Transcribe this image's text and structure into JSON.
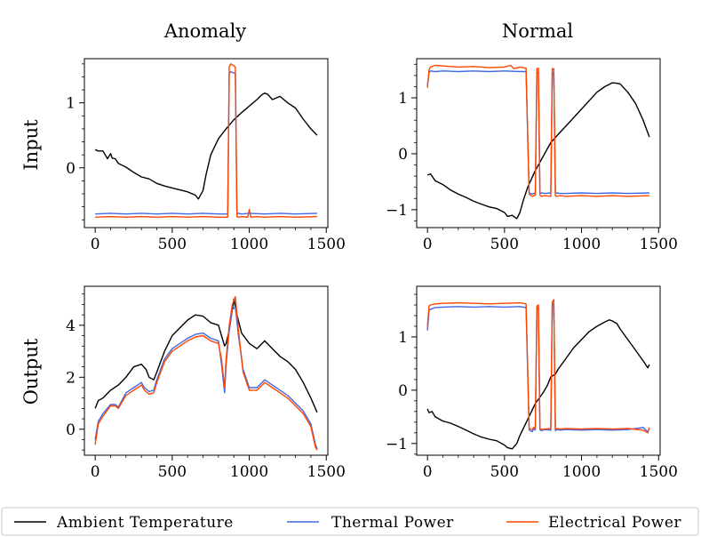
{
  "colors": {
    "ambient": "#000000",
    "thermal": "#4169e1",
    "electrical": "#ff4500"
  },
  "legend": {
    "ambient_label": "Ambient Temperature",
    "thermal_label": "Thermal Power",
    "electrical_label": "Electrical Power"
  },
  "chart_data": [
    {
      "type": "line",
      "column_title": "Anomaly",
      "row_label": "Input",
      "xlim": [
        -70,
        1510
      ],
      "ylim": [
        -0.92,
        1.68
      ],
      "xticks": [
        0,
        500,
        1000,
        1500
      ],
      "xtick_labels": [
        "0",
        "500",
        "1000",
        "1500"
      ],
      "yticks": [
        0,
        1
      ],
      "ytick_labels": [
        "0",
        "1"
      ],
      "series": [
        {
          "name": "Ambient Temperature",
          "key": "ambient",
          "x": [
            0,
            20,
            50,
            80,
            100,
            110,
            130,
            150,
            200,
            250,
            300,
            350,
            400,
            450,
            500,
            550,
            600,
            650,
            670,
            700,
            720,
            750,
            800,
            850,
            900,
            950,
            1000,
            1050,
            1080,
            1100,
            1120,
            1150,
            1200,
            1250,
            1300,
            1350,
            1400,
            1440
          ],
          "y": [
            0.28,
            0.26,
            0.26,
            0.14,
            0.22,
            0.15,
            0.14,
            0.07,
            0.01,
            -0.07,
            -0.14,
            -0.17,
            -0.24,
            -0.28,
            -0.31,
            -0.34,
            -0.37,
            -0.42,
            -0.48,
            -0.35,
            -0.1,
            0.2,
            0.45,
            0.6,
            0.74,
            0.85,
            0.95,
            1.05,
            1.12,
            1.15,
            1.13,
            1.05,
            1.1,
            1.0,
            0.92,
            0.75,
            0.6,
            0.5
          ]
        },
        {
          "name": "Thermal Power",
          "key": "thermal",
          "x": [
            0,
            100,
            200,
            300,
            400,
            500,
            600,
            700,
            800,
            860,
            870,
            880,
            900,
            910,
            920,
            930,
            950,
            1000,
            1100,
            1200,
            1300,
            1440
          ],
          "y": [
            -0.71,
            -0.7,
            -0.71,
            -0.7,
            -0.71,
            -0.7,
            -0.71,
            -0.7,
            -0.71,
            -0.71,
            1.45,
            1.48,
            1.46,
            1.45,
            -0.71,
            -0.7,
            -0.71,
            -0.7,
            -0.71,
            -0.7,
            -0.71,
            -0.7
          ]
        },
        {
          "name": "Electrical Power",
          "key": "electrical",
          "x": [
            0,
            100,
            200,
            300,
            400,
            500,
            600,
            700,
            800,
            860,
            870,
            880,
            900,
            910,
            920,
            930,
            950,
            990,
            1000,
            1010,
            1050,
            1100,
            1200,
            1300,
            1440
          ],
          "y": [
            -0.76,
            -0.75,
            -0.76,
            -0.75,
            -0.76,
            -0.75,
            -0.76,
            -0.75,
            -0.76,
            -0.76,
            1.55,
            1.6,
            1.57,
            1.55,
            -0.75,
            -0.76,
            -0.75,
            -0.76,
            -0.64,
            -0.76,
            -0.75,
            -0.76,
            -0.75,
            -0.76,
            -0.75
          ]
        }
      ]
    },
    {
      "type": "line",
      "column_title": "Normal",
      "row_label": "",
      "xlim": [
        -70,
        1510
      ],
      "ylim": [
        -1.32,
        1.7
      ],
      "xticks": [
        0,
        500,
        1000,
        1500
      ],
      "xtick_labels": [
        "0",
        "500",
        "1000",
        "1500"
      ],
      "yticks": [
        -1,
        0,
        1
      ],
      "ytick_labels": [
        "−1",
        "0",
        "1"
      ],
      "series": [
        {
          "name": "Ambient Temperature",
          "key": "ambient",
          "x": [
            0,
            20,
            50,
            100,
            150,
            200,
            250,
            300,
            350,
            400,
            450,
            500,
            520,
            550,
            580,
            600,
            620,
            650,
            700,
            750,
            800,
            850,
            900,
            950,
            1000,
            1050,
            1100,
            1150,
            1200,
            1230,
            1250,
            1300,
            1350,
            1400,
            1440
          ],
          "y": [
            -0.38,
            -0.36,
            -0.48,
            -0.55,
            -0.65,
            -0.72,
            -0.78,
            -0.85,
            -0.9,
            -0.95,
            -0.98,
            -1.05,
            -1.12,
            -1.1,
            -1.16,
            -1.05,
            -0.85,
            -0.6,
            -0.3,
            -0.05,
            0.2,
            0.35,
            0.5,
            0.65,
            0.8,
            0.95,
            1.1,
            1.2,
            1.27,
            1.26,
            1.25,
            1.1,
            0.9,
            0.6,
            0.3
          ]
        },
        {
          "name": "Thermal Power",
          "key": "thermal",
          "x": [
            0,
            10,
            20,
            50,
            100,
            200,
            300,
            400,
            500,
            600,
            640,
            660,
            680,
            700,
            710,
            720,
            730,
            740,
            760,
            800,
            810,
            820,
            830,
            840,
            860,
            900,
            1000,
            1100,
            1200,
            1300,
            1440
          ],
          "y": [
            1.22,
            1.45,
            1.48,
            1.47,
            1.48,
            1.47,
            1.48,
            1.47,
            1.48,
            1.47,
            1.47,
            -0.7,
            -0.72,
            -0.7,
            1.45,
            1.45,
            -0.71,
            -0.7,
            -0.71,
            -0.7,
            1.45,
            1.45,
            -0.71,
            -0.7,
            -0.71,
            -0.71,
            -0.7,
            -0.71,
            -0.7,
            -0.71,
            -0.7
          ]
        },
        {
          "name": "Electrical Power",
          "key": "electrical",
          "x": [
            0,
            10,
            20,
            50,
            100,
            200,
            300,
            400,
            500,
            540,
            560,
            600,
            640,
            660,
            680,
            700,
            710,
            720,
            730,
            740,
            760,
            800,
            810,
            820,
            830,
            840,
            860,
            900,
            1000,
            1100,
            1200,
            1300,
            1440
          ],
          "y": [
            1.18,
            1.5,
            1.55,
            1.58,
            1.57,
            1.55,
            1.56,
            1.54,
            1.55,
            1.58,
            1.52,
            1.55,
            1.53,
            -0.72,
            -0.76,
            -0.74,
            1.52,
            1.53,
            -0.74,
            -0.76,
            -0.75,
            -0.76,
            1.52,
            1.52,
            -0.75,
            -0.76,
            -0.75,
            -0.76,
            -0.75,
            -0.76,
            -0.75,
            -0.76,
            -0.75
          ]
        }
      ]
    },
    {
      "type": "line",
      "column_title": "",
      "row_label": "Output",
      "xlim": [
        -70,
        1510
      ],
      "ylim": [
        -1.0,
        5.5
      ],
      "xticks": [
        0,
        500,
        1000,
        1500
      ],
      "xtick_labels": [
        "0",
        "500",
        "1000",
        "1500"
      ],
      "yticks": [
        0,
        2,
        4
      ],
      "ytick_labels": [
        "0",
        "2",
        "4"
      ],
      "series": [
        {
          "name": "Ambient Temperature",
          "key": "ambient",
          "x": [
            0,
            20,
            50,
            100,
            150,
            200,
            250,
            300,
            330,
            350,
            380,
            400,
            450,
            500,
            550,
            600,
            650,
            700,
            750,
            800,
            820,
            840,
            850,
            870,
            900,
            920,
            950,
            1000,
            1050,
            1100,
            1150,
            1200,
            1250,
            1300,
            1350,
            1400,
            1440
          ],
          "y": [
            0.8,
            1.1,
            1.2,
            1.5,
            1.7,
            2.0,
            2.4,
            2.5,
            2.3,
            2.0,
            1.9,
            2.2,
            3.0,
            3.6,
            3.9,
            4.2,
            4.4,
            4.35,
            4.1,
            4.0,
            3.6,
            3.2,
            3.3,
            3.8,
            5.0,
            4.4,
            3.7,
            3.3,
            3.1,
            3.4,
            3.1,
            2.8,
            2.6,
            2.3,
            1.8,
            1.2,
            0.65
          ]
        },
        {
          "name": "Thermal Power",
          "key": "thermal",
          "x": [
            0,
            20,
            50,
            100,
            130,
            150,
            200,
            250,
            300,
            320,
            350,
            380,
            400,
            450,
            500,
            550,
            600,
            650,
            700,
            750,
            800,
            820,
            840,
            850,
            870,
            890,
            910,
            930,
            960,
            1000,
            1050,
            1100,
            1150,
            1200,
            1250,
            1300,
            1350,
            1400,
            1430,
            1440
          ],
          "y": [
            -0.4,
            0.3,
            0.6,
            0.95,
            0.95,
            0.85,
            1.4,
            1.6,
            1.8,
            1.6,
            1.45,
            1.5,
            1.9,
            2.7,
            3.1,
            3.3,
            3.5,
            3.65,
            3.7,
            3.5,
            3.4,
            2.5,
            1.4,
            2.5,
            3.8,
            4.6,
            4.7,
            3.6,
            2.3,
            1.6,
            1.6,
            1.9,
            1.7,
            1.5,
            1.3,
            1.0,
            0.7,
            0.2,
            -0.6,
            -0.75
          ]
        },
        {
          "name": "Electrical Power",
          "key": "electrical",
          "x": [
            0,
            20,
            50,
            100,
            130,
            150,
            200,
            250,
            300,
            320,
            350,
            380,
            400,
            450,
            500,
            550,
            600,
            650,
            700,
            750,
            800,
            820,
            840,
            850,
            870,
            890,
            910,
            930,
            960,
            1000,
            1050,
            1100,
            1150,
            1200,
            1250,
            1300,
            1350,
            1400,
            1430,
            1440
          ],
          "y": [
            -0.6,
            0.2,
            0.5,
            0.9,
            0.9,
            0.8,
            1.3,
            1.5,
            1.7,
            1.5,
            1.35,
            1.4,
            1.8,
            2.6,
            3.0,
            3.2,
            3.4,
            3.55,
            3.6,
            3.4,
            3.3,
            2.7,
            1.6,
            2.7,
            4.0,
            4.8,
            5.1,
            3.8,
            2.2,
            1.5,
            1.5,
            1.8,
            1.6,
            1.4,
            1.2,
            0.9,
            0.6,
            0.1,
            -0.7,
            -0.8
          ]
        }
      ]
    },
    {
      "type": "line",
      "column_title": "",
      "row_label": "",
      "xlim": [
        -70,
        1510
      ],
      "ylim": [
        -1.22,
        1.95
      ],
      "xticks": [
        0,
        500,
        1000,
        1500
      ],
      "xtick_labels": [
        "0",
        "500",
        "1000",
        "1500"
      ],
      "yticks": [
        -1,
        0,
        1
      ],
      "ytick_labels": [
        "−1",
        "0",
        "1"
      ],
      "series": [
        {
          "name": "Ambient Temperature",
          "key": "ambient",
          "x": [
            0,
            10,
            30,
            50,
            100,
            150,
            200,
            250,
            300,
            350,
            400,
            450,
            500,
            520,
            550,
            580,
            600,
            650,
            700,
            750,
            780,
            800,
            830,
            850,
            900,
            950,
            1000,
            1050,
            1100,
            1150,
            1180,
            1200,
            1230,
            1250,
            1300,
            1350,
            1400,
            1430,
            1440
          ],
          "y": [
            -0.35,
            -0.42,
            -0.4,
            -0.5,
            -0.58,
            -0.62,
            -0.68,
            -0.75,
            -0.82,
            -0.88,
            -0.92,
            -0.95,
            -1.03,
            -1.08,
            -1.1,
            -1.0,
            -0.85,
            -0.55,
            -0.25,
            -0.05,
            0.1,
            0.25,
            0.3,
            0.4,
            0.6,
            0.8,
            0.95,
            1.1,
            1.2,
            1.28,
            1.32,
            1.3,
            1.25,
            1.15,
            0.95,
            0.75,
            0.55,
            0.42,
            0.48
          ]
        },
        {
          "name": "Thermal Power",
          "key": "thermal",
          "x": [
            0,
            10,
            20,
            50,
            100,
            200,
            300,
            400,
            500,
            600,
            640,
            660,
            680,
            690,
            700,
            710,
            720,
            730,
            740,
            760,
            800,
            810,
            820,
            830,
            840,
            860,
            900,
            1000,
            1100,
            1200,
            1300,
            1400,
            1430,
            1440
          ],
          "y": [
            1.12,
            1.5,
            1.52,
            1.55,
            1.56,
            1.57,
            1.56,
            1.57,
            1.56,
            1.57,
            1.55,
            -0.75,
            -0.78,
            -0.72,
            -0.75,
            1.52,
            1.55,
            -0.74,
            -0.76,
            -0.74,
            -0.75,
            1.6,
            1.62,
            -0.76,
            -0.74,
            -0.75,
            -0.74,
            -0.75,
            -0.74,
            -0.75,
            -0.74,
            -0.7,
            -0.78,
            -0.72
          ]
        },
        {
          "name": "Electrical Power",
          "key": "electrical",
          "x": [
            0,
            10,
            20,
            50,
            100,
            200,
            300,
            400,
            500,
            600,
            640,
            660,
            680,
            690,
            700,
            710,
            720,
            730,
            740,
            760,
            800,
            810,
            820,
            830,
            840,
            860,
            900,
            1000,
            1100,
            1200,
            1300,
            1400,
            1430,
            1440
          ],
          "y": [
            1.2,
            1.58,
            1.6,
            1.62,
            1.63,
            1.64,
            1.63,
            1.62,
            1.63,
            1.64,
            1.62,
            -0.72,
            -0.74,
            -0.7,
            -0.72,
            1.58,
            1.6,
            -0.72,
            -0.74,
            -0.73,
            -0.72,
            1.65,
            1.7,
            -0.73,
            -0.72,
            -0.73,
            -0.72,
            -0.73,
            -0.72,
            -0.73,
            -0.72,
            -0.75,
            -0.8,
            -0.7
          ]
        }
      ]
    }
  ]
}
